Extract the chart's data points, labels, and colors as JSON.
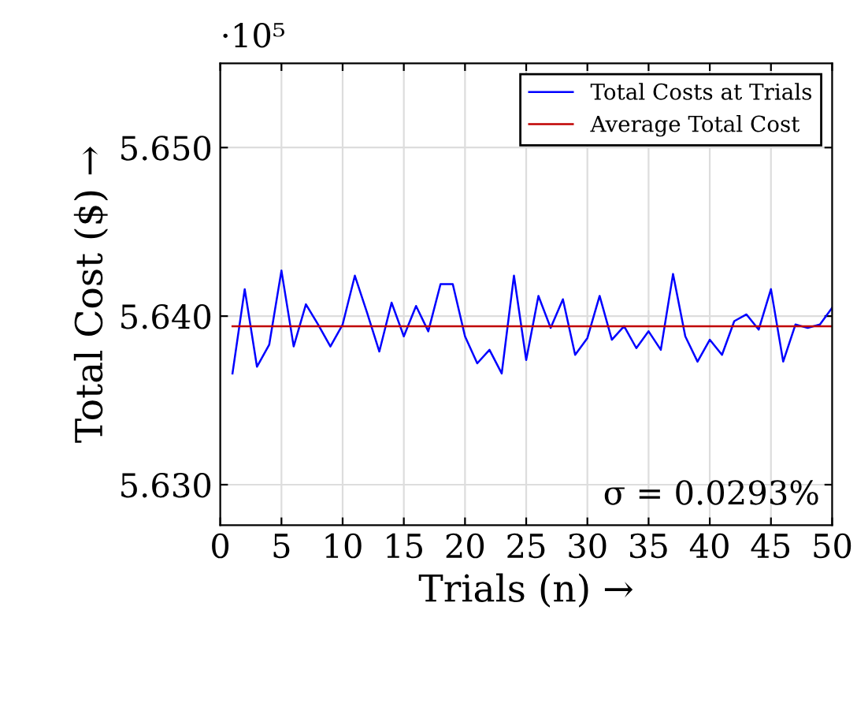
{
  "chart_data": {
    "type": "line",
    "xlabel": "Trials (n) →",
    "ylabel": "Total Cost ($) →",
    "x": [
      1,
      2,
      3,
      4,
      5,
      6,
      7,
      8,
      9,
      10,
      11,
      12,
      13,
      14,
      15,
      16,
      17,
      18,
      19,
      20,
      21,
      22,
      23,
      24,
      25,
      26,
      27,
      28,
      29,
      30,
      31,
      32,
      33,
      34,
      35,
      36,
      37,
      38,
      39,
      40,
      41,
      42,
      43,
      44,
      45,
      46,
      47,
      48,
      49,
      50
    ],
    "series": [
      {
        "name": "Total Costs at Trials",
        "color": "#0000ff",
        "values": [
          5.6366,
          5.6416,
          5.637,
          5.6383,
          5.6427,
          5.6382,
          5.6407,
          5.6395,
          5.6382,
          5.6395,
          5.6424,
          5.6402,
          5.6379,
          5.6408,
          5.6388,
          5.6406,
          5.6391,
          5.6419,
          5.6419,
          5.6388,
          5.6372,
          5.638,
          5.6366,
          5.6424,
          5.6374,
          5.6412,
          5.6393,
          5.641,
          5.6377,
          5.6387,
          5.6412,
          5.6386,
          5.6394,
          5.6381,
          5.6391,
          5.638,
          5.6425,
          5.6388,
          5.6373,
          5.6386,
          5.6377,
          5.6397,
          5.6401,
          5.6392,
          5.6416,
          5.6373,
          5.6395,
          5.6393,
          5.6395,
          5.6405
        ]
      },
      {
        "name": "Average Total Cost",
        "color": "#c00000",
        "x": [
          1,
          50
        ],
        "values": [
          5.6394,
          5.6394
        ]
      }
    ],
    "xlim": [
      0,
      50
    ],
    "xticks": [
      0,
      5,
      10,
      15,
      20,
      25,
      30,
      35,
      40,
      45,
      50
    ],
    "ylim": [
      5.6276,
      5.655
    ],
    "yticks": [
      {
        "value": 5.63,
        "label": "5.630"
      },
      {
        "value": 5.64,
        "label": "5.640"
      },
      {
        "value": 5.65,
        "label": "5.650"
      }
    ],
    "annotations": [
      "·10⁵",
      "σ = 0.0293%"
    ],
    "grid": true,
    "legend": "top right"
  }
}
